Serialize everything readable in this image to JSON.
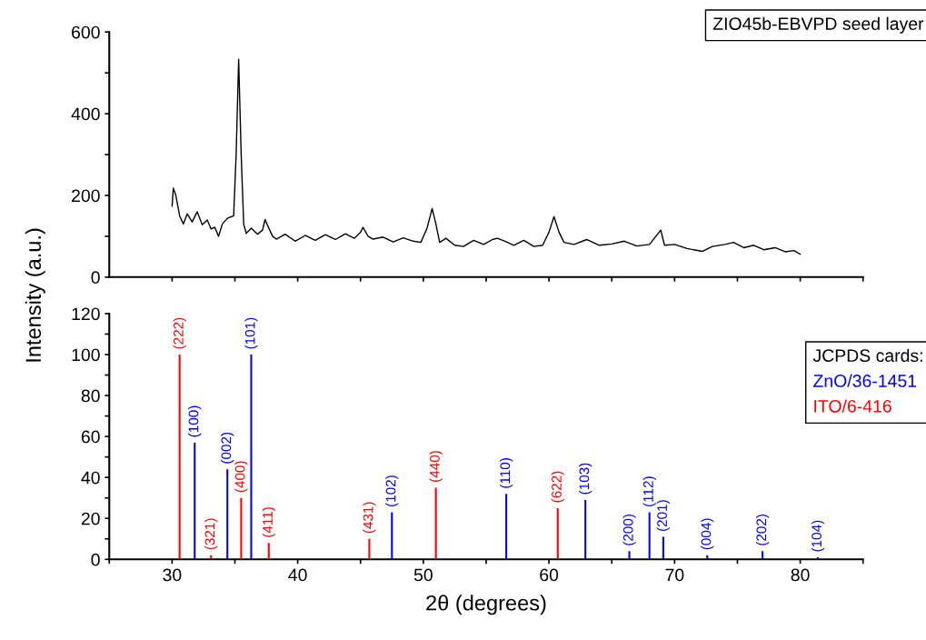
{
  "chart_data": [
    {
      "type": "line",
      "x": [
        30.0,
        30.1,
        30.3,
        30.6,
        30.9,
        31.2,
        31.6,
        32.0,
        32.4,
        32.8,
        33.1,
        33.4,
        33.7,
        34.0,
        34.4,
        34.9,
        35.1,
        35.3,
        35.5,
        35.7,
        35.9,
        36.3,
        36.8,
        37.2,
        37.4,
        37.7,
        38.0,
        38.3,
        39.0,
        39.8,
        40.6,
        41.4,
        42.2,
        43.0,
        43.8,
        44.5,
        45.0,
        45.2,
        45.6,
        46.0,
        46.8,
        47.6,
        48.4,
        49.2,
        49.8,
        50.3,
        50.7,
        51.0,
        51.3,
        51.8,
        52.5,
        53.2,
        54.0,
        54.8,
        55.5,
        55.9,
        56.5,
        57.2,
        58.0,
        58.8,
        59.5,
        60.0,
        60.4,
        60.8,
        61.2,
        62.0,
        63.0,
        64.0,
        65.0,
        66.0,
        67.0,
        68.0,
        68.9,
        69.2,
        70.0,
        71.0,
        72.2,
        73.0,
        74.0,
        74.7,
        75.5,
        76.3,
        77.1,
        78.0,
        78.8,
        79.5,
        80.0
      ],
      "series": [
        {
          "name": "ZIO45b-EBVPD seed layer",
          "color": "#000000",
          "values": [
            174,
            218,
            200,
            150,
            130,
            155,
            135,
            160,
            128,
            140,
            118,
            122,
            100,
            130,
            144,
            150,
            300,
            533,
            300,
            130,
            107,
            120,
            105,
            115,
            141,
            120,
            100,
            93,
            105,
            88,
            102,
            90,
            104,
            92,
            106,
            95,
            110,
            122,
            100,
            93,
            98,
            86,
            96,
            88,
            85,
            120,
            168,
            130,
            85,
            95,
            78,
            75,
            90,
            80,
            92,
            95,
            88,
            78,
            90,
            75,
            78,
            110,
            148,
            110,
            85,
            80,
            92,
            78,
            81,
            88,
            76,
            80,
            115,
            78,
            80,
            70,
            63,
            75,
            80,
            85,
            72,
            78,
            67,
            72,
            62,
            65,
            56
          ]
        }
      ],
      "xlim": [
        25,
        85
      ],
      "xticks": [
        {
          "value": 30,
          "label": null
        },
        {
          "value": 35,
          "label": null
        },
        {
          "value": 40,
          "label": null
        },
        {
          "value": 45,
          "label": null
        },
        {
          "value": 50,
          "label": null
        },
        {
          "value": 55,
          "label": null
        },
        {
          "value": 60,
          "label": null
        },
        {
          "value": 65,
          "label": null
        },
        {
          "value": 70,
          "label": null
        },
        {
          "value": 75,
          "label": null
        },
        {
          "value": 80,
          "label": null
        },
        {
          "value": 85,
          "label": null
        }
      ],
      "ylim": [
        0,
        600
      ],
      "yticks": [
        0,
        {
          "value": 100,
          "label": null
        },
        200,
        {
          "value": 300,
          "label": null
        },
        400,
        {
          "value": 500,
          "label": null
        },
        600
      ],
      "tick_labels": "y",
      "legend": "top right"
    },
    {
      "type": "bar",
      "xlabel": "2θ (degrees)",
      "ylabel": "Intensity (a.u.)",
      "legend": "right",
      "legend_title": "JCPDS cards:",
      "series": [
        {
          "name": "ZnO/36-1451",
          "color": "#0000ff",
          "x": [
            31.8,
            34.4,
            36.3,
            47.5,
            56.6,
            62.9,
            66.4,
            68.0,
            69.1,
            72.6,
            77.0,
            81.4
          ],
          "values": [
            57,
            44,
            100,
            23,
            32,
            29,
            4,
            23,
            11,
            2,
            4,
            1
          ]
        },
        {
          "name": "ITO/6-416",
          "color": "#ff0000",
          "x": [
            30.6,
            33.1,
            35.5,
            37.7,
            45.7,
            51.0,
            60.7
          ],
          "values": [
            100,
            2,
            30,
            8,
            10,
            35,
            25
          ]
        }
      ],
      "annotations": [
        {
          "text": "(222)",
          "x": 30.6,
          "y": 100
        },
        {
          "text": "(100)",
          "x": 31.8,
          "y": 57
        },
        {
          "text": "(321)",
          "x": 33.1,
          "y": 2
        },
        {
          "text": "(002)",
          "x": 34.4,
          "y": 44
        },
        {
          "text": "(400)",
          "x": 35.5,
          "y": 30
        },
        {
          "text": "(101)",
          "x": 36.3,
          "y": 100
        },
        {
          "text": "(411)",
          "x": 37.7,
          "y": 8
        },
        {
          "text": "(431)",
          "x": 45.7,
          "y": 10
        },
        {
          "text": "(102)",
          "x": 47.5,
          "y": 23
        },
        {
          "text": "(440)",
          "x": 51.0,
          "y": 35
        },
        {
          "text": "(110)",
          "x": 56.6,
          "y": 32
        },
        {
          "text": "(622)",
          "x": 60.7,
          "y": 25
        },
        {
          "text": "(103)",
          "x": 62.9,
          "y": 29
        },
        {
          "text": "(200)",
          "x": 66.4,
          "y": 4
        },
        {
          "text": "(112)",
          "x": 68.0,
          "y": 23
        },
        {
          "text": "(201)",
          "x": 69.1,
          "y": 11
        },
        {
          "text": "(004)",
          "x": 72.6,
          "y": 2
        },
        {
          "text": "(202)",
          "x": 77.0,
          "y": 4
        },
        {
          "text": "(104)",
          "x": 81.4,
          "y": 1
        }
      ],
      "xlim": [
        25,
        85
      ],
      "xticks": [
        {
          "value": 25,
          "label": null
        },
        30,
        {
          "value": 35,
          "label": null
        },
        40,
        {
          "value": 45,
          "label": null
        },
        50,
        {
          "value": 55,
          "label": null
        },
        60,
        {
          "value": 65,
          "label": null
        },
        70,
        {
          "value": 75,
          "label": null
        },
        80,
        {
          "value": 85,
          "label": null
        }
      ],
      "ylim": [
        0,
        120
      ],
      "yticks": [
        0,
        {
          "value": 10,
          "label": null
        },
        20,
        {
          "value": 30,
          "label": null
        },
        40,
        {
          "value": 50,
          "label": null
        },
        60,
        {
          "value": 70,
          "label": null
        },
        80,
        {
          "value": 90,
          "label": null
        },
        100,
        {
          "value": 110,
          "label": null
        },
        120
      ]
    }
  ]
}
